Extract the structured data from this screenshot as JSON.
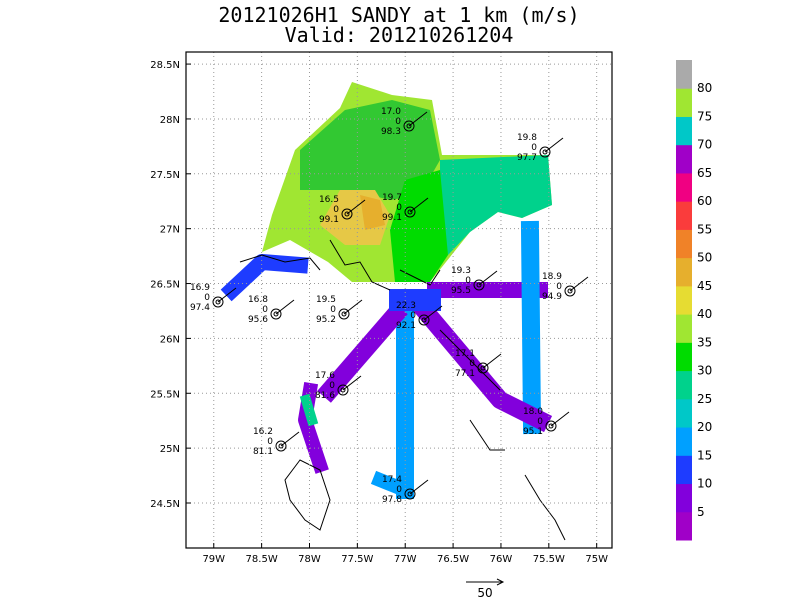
{
  "header": {
    "title": "20121026H1 SANDY at 1 km (m/s)",
    "subtitle": "Valid: 201210261204"
  },
  "map": {
    "lonlim": [
      -79.29,
      -74.84
    ],
    "latlim": [
      24.09,
      28.61
    ],
    "grid": true,
    "xticks": [
      {
        "value": -79,
        "label": "79W"
      },
      {
        "value": -78.5,
        "label": "78.5W"
      },
      {
        "value": -78,
        "label": "78W"
      },
      {
        "value": -77.5,
        "label": "77.5W"
      },
      {
        "value": -77,
        "label": "77W"
      },
      {
        "value": -76.5,
        "label": "76.5W"
      },
      {
        "value": -76,
        "label": "76W"
      },
      {
        "value": -75.5,
        "label": "75.5W"
      },
      {
        "value": -75,
        "label": "75W"
      }
    ],
    "yticks": [
      {
        "value": 24.5,
        "label": "24.5N"
      },
      {
        "value": 25,
        "label": "25N"
      },
      {
        "value": 25.5,
        "label": "25.5N"
      },
      {
        "value": 26,
        "label": "26N"
      },
      {
        "value": 26.5,
        "label": "26.5N"
      },
      {
        "value": 27,
        "label": "27N"
      },
      {
        "value": 27.5,
        "label": "27.5N"
      },
      {
        "value": 28,
        "label": "28N"
      },
      {
        "value": 28.5,
        "label": "28.5N"
      }
    ],
    "stations": [
      [
        "17.0",
        "0",
        "98.3"
      ],
      [
        "19.8",
        "0",
        "97.7"
      ],
      [
        "16.5",
        "0",
        "99.1"
      ],
      [
        "19.7",
        "0",
        "99.1"
      ],
      [
        "16.9",
        "0",
        "97.4"
      ],
      [
        "16.8",
        "0",
        "95.6"
      ],
      [
        "19.5",
        "0",
        "95.2"
      ],
      [
        "19.3",
        "0",
        "95.5"
      ],
      [
        "18.9",
        "0",
        "94.9"
      ],
      [
        "22.3",
        "0",
        "92.1"
      ],
      [
        "17.1",
        "0",
        "77.1"
      ],
      [
        "17.6",
        "0",
        "81.6"
      ],
      [
        "18.0",
        "0",
        "95.1"
      ],
      [
        "16.2",
        "0",
        "81.1"
      ],
      [
        "17.4",
        "0",
        "97.8"
      ]
    ],
    "vector_scale": 50
  },
  "colorbar": {
    "levels": [
      5,
      10,
      15,
      20,
      25,
      30,
      35,
      40,
      45,
      50,
      55,
      60,
      65,
      70,
      75,
      80
    ],
    "colors": [
      "#a000c8",
      "#8200dc",
      "#1e3cff",
      "#00a0ff",
      "#00c8c8",
      "#00d28c",
      "#00dc00",
      "#a0e632",
      "#e6dc32",
      "#e6af2d",
      "#f08228",
      "#fa3c3c",
      "#f00082",
      "#a000c8",
      "#00c8c8",
      "#a0e632",
      "#aaaaaa"
    ]
  }
}
